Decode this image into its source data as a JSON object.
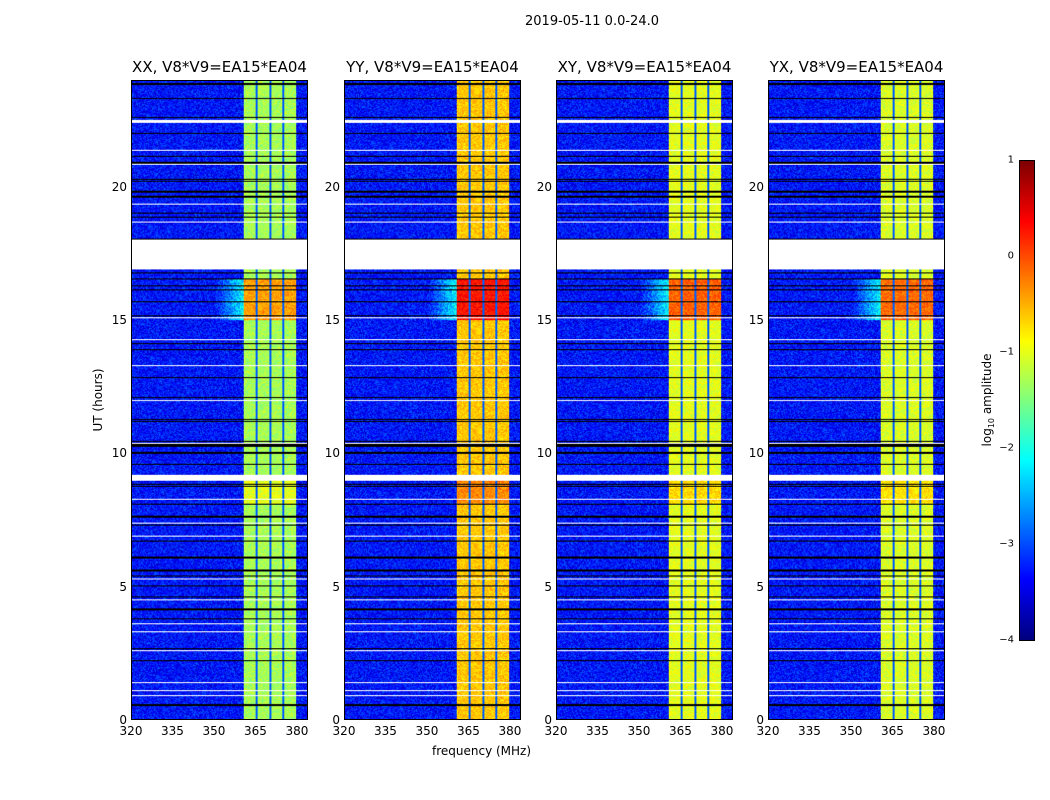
{
  "chart_data": {
    "type": "heatmap",
    "title": "2019-05-11 0.0-24.0",
    "xlabel": "frequency (MHz)",
    "ylabel": "UT (hours)",
    "xlim": [
      320,
      384
    ],
    "ylim": [
      0,
      24
    ],
    "xticks": [
      320,
      335,
      350,
      365,
      380
    ],
    "yticks": [
      0,
      5,
      10,
      15,
      20
    ],
    "colormap": "jet",
    "colorbar": {
      "label_main": "log",
      "label_sub": "10",
      "label_rest": " amplitude",
      "range": [
        -4,
        1
      ],
      "ticks": [
        1,
        0,
        -1,
        -2,
        -3,
        -4
      ],
      "tick_labels": [
        "1",
        "0",
        "−1",
        "−2",
        "−3",
        "−4"
      ]
    },
    "flagged_gaps_hours": [
      [
        16.93,
        18.05
      ],
      [
        9.0,
        9.2
      ],
      [
        22.45,
        22.55
      ]
    ],
    "signal_band_mhz": [
      360.7,
      380.0
    ],
    "subband_edges_mhz": [
      365.5,
      370.3,
      375.3
    ],
    "background_log_amplitude": -3.3,
    "panels": [
      {
        "title": "XX, V8*V9=EA15*EA04",
        "band_log_amplitude": -1.3
      },
      {
        "title": "YY, V8*V9=EA15*EA04",
        "band_log_amplitude": -0.6
      },
      {
        "title": "XY, V8*V9=EA15*EA04",
        "band_log_amplitude": -1.0
      },
      {
        "title": "YX, V8*V9=EA15*EA04",
        "band_log_amplitude": -1.05
      }
    ]
  }
}
